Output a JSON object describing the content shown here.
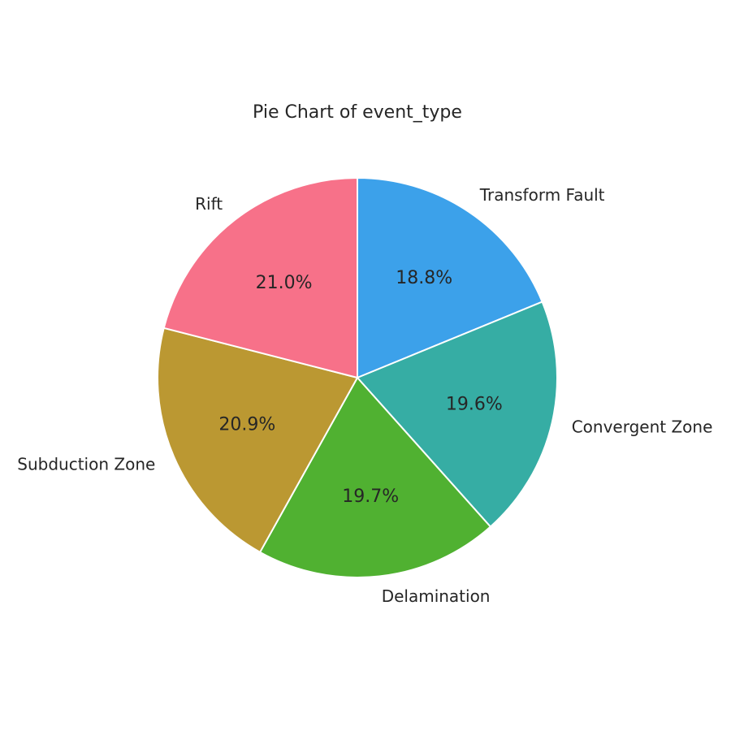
{
  "chart_data": {
    "type": "pie",
    "title": "Pie Chart of event_type",
    "start_angle_deg": 90,
    "direction": "clockwise",
    "slices": [
      {
        "label": "Transform Fault",
        "value": 18.8,
        "pct_label": "18.8%",
        "color": "#3ca1ea"
      },
      {
        "label": "Convergent Zone",
        "value": 19.6,
        "pct_label": "19.6%",
        "color": "#36ada4"
      },
      {
        "label": "Delamination",
        "value": 19.7,
        "pct_label": "19.7%",
        "color": "#50b131"
      },
      {
        "label": "Subduction Zone",
        "value": 20.9,
        "pct_label": "20.9%",
        "color": "#bb9832"
      },
      {
        "label": "Rift",
        "value": 21.0,
        "pct_label": "21.0%",
        "color": "#f77189"
      }
    ]
  }
}
